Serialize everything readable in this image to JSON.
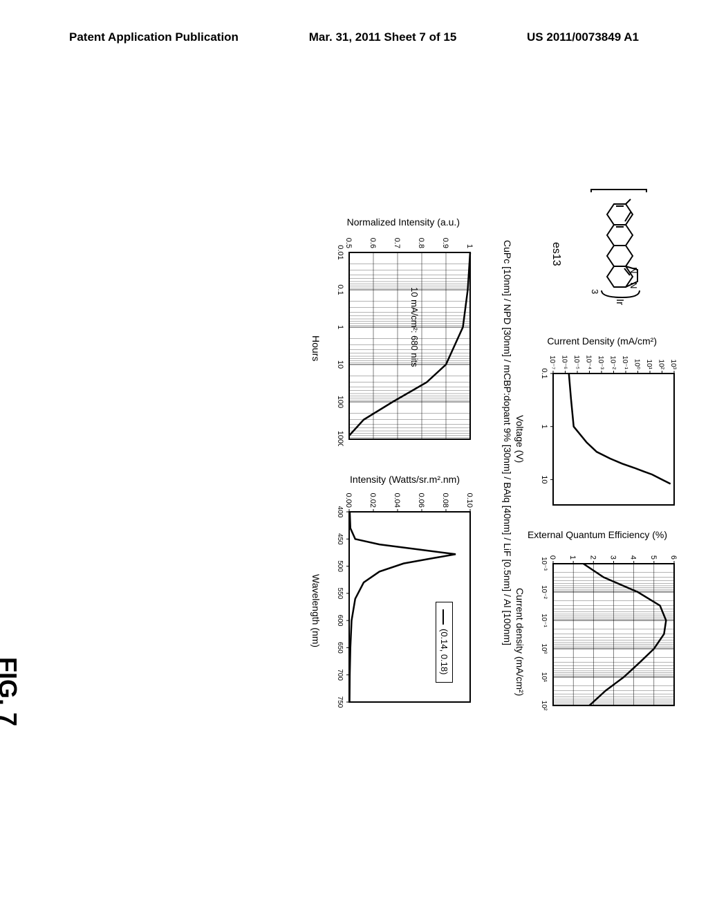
{
  "header": {
    "left": "Patent Application Publication",
    "center": "Mar. 31, 2011 Sheet 7 of 15",
    "right": "US 2011/0073849 A1"
  },
  "figure_label": "FIG. 7",
  "molecule_label": "es13",
  "device_structure": "CuPc [10nm] / NPD [30nm] / mCBP:dopant 9% [30nm] / BAlq [40nm] / LiF [0.5nm] / Al [100nm]",
  "jv_chart": {
    "type": "line",
    "xlabel": "Voltage (V)",
    "ylabel": "Current Density (mA/cm²)",
    "xscale": "log",
    "yscale": "log",
    "xlim": [
      0.1,
      30
    ],
    "ylim": [
      1e-07,
      1000.0
    ],
    "xtick_labels": [
      "0.1",
      "1",
      "10"
    ],
    "xtick_positions": [
      0.1,
      1,
      10
    ],
    "ytick_labels": [
      "10⁻⁷",
      "10⁻⁶",
      "10⁻⁵",
      "10⁻⁴",
      "10⁻³",
      "10⁻²",
      "10⁻¹",
      "10⁰",
      "10¹",
      "10²",
      "10³"
    ],
    "curve_points": [
      [
        0.1,
        2e-06
      ],
      [
        0.3,
        3e-06
      ],
      [
        1,
        5e-06
      ],
      [
        2,
        6e-05
      ],
      [
        3,
        0.0004
      ],
      [
        4,
        0.005
      ],
      [
        5,
        0.05
      ],
      [
        6,
        0.5
      ],
      [
        7,
        3
      ],
      [
        8,
        15
      ],
      [
        10,
        100
      ],
      [
        12,
        500
      ]
    ],
    "line_color": "#000000",
    "line_width": 2.5,
    "background_color": "#ffffff"
  },
  "eqe_chart": {
    "type": "line",
    "xlabel": "Current density (mA/cm²)",
    "ylabel": "External Quantum Efficiency (%)",
    "xscale": "log",
    "yscale": "linear",
    "xlim": [
      0.001,
      100.0
    ],
    "ylim": [
      0,
      6
    ],
    "xtick_labels": [
      "10⁻³",
      "10⁻²",
      "10⁻¹",
      "10⁰",
      "10¹",
      "10²"
    ],
    "ytick_labels": [
      "0",
      "1",
      "2",
      "3",
      "4",
      "5",
      "6"
    ],
    "curve_points": [
      [
        0.001,
        1.5
      ],
      [
        0.003,
        2.5
      ],
      [
        0.01,
        4.2
      ],
      [
        0.03,
        5.3
      ],
      [
        0.1,
        5.6
      ],
      [
        0.3,
        5.5
      ],
      [
        1,
        5.0
      ],
      [
        3,
        4.3
      ],
      [
        10,
        3.5
      ],
      [
        30,
        2.6
      ],
      [
        100,
        1.8
      ]
    ],
    "line_color": "#000000",
    "line_width": 2.5,
    "background_color": "#ffffff"
  },
  "lifetime_chart": {
    "type": "line",
    "xlabel": "Hours",
    "ylabel": "Normalized Intensity (a.u.)",
    "xscale": "log",
    "yscale": "linear",
    "xlim": [
      0.01,
      1000
    ],
    "ylim": [
      0.5,
      1.0
    ],
    "xtick_labels": [
      "0.01",
      "0.1",
      "1",
      "10",
      "100",
      "1000"
    ],
    "ytick_labels": [
      "0.5",
      "0.6",
      "0.7",
      "0.8",
      "0.9",
      "1"
    ],
    "annotation": "10 mA/cm²: 680 nits",
    "curve_points": [
      [
        0.01,
        1.0
      ],
      [
        0.1,
        0.99
      ],
      [
        1,
        0.97
      ],
      [
        10,
        0.9
      ],
      [
        30,
        0.82
      ],
      [
        100,
        0.68
      ],
      [
        300,
        0.56
      ],
      [
        800,
        0.5
      ]
    ],
    "line_color": "#000000",
    "line_width": 2.5,
    "background_color": "#ffffff"
  },
  "spectrum_chart": {
    "type": "line",
    "xlabel": "Wavelength (nm)",
    "ylabel": "Intensity (Watts/sr.m².nm)",
    "xscale": "linear",
    "yscale": "linear",
    "xlim": [
      400,
      750
    ],
    "ylim": [
      0.0,
      0.1
    ],
    "xtick_labels": [
      "400",
      "450",
      "500",
      "550",
      "600",
      "650",
      "700",
      "750"
    ],
    "ytick_labels": [
      "0.00",
      "0.02",
      "0.04",
      "0.06",
      "0.08",
      "0.10"
    ],
    "legend": "(0.14, 0.18)",
    "curve_points": [
      [
        400,
        0.0005
      ],
      [
        430,
        0.001
      ],
      [
        450,
        0.005
      ],
      [
        460,
        0.025
      ],
      [
        470,
        0.06
      ],
      [
        478,
        0.088
      ],
      [
        485,
        0.07
      ],
      [
        495,
        0.045
      ],
      [
        510,
        0.025
      ],
      [
        530,
        0.012
      ],
      [
        560,
        0.005
      ],
      [
        600,
        0.002
      ],
      [
        650,
        0.001
      ],
      [
        700,
        0.0005
      ],
      [
        750,
        0.0003
      ]
    ],
    "line_color": "#000000",
    "line_width": 2,
    "background_color": "#ffffff"
  }
}
